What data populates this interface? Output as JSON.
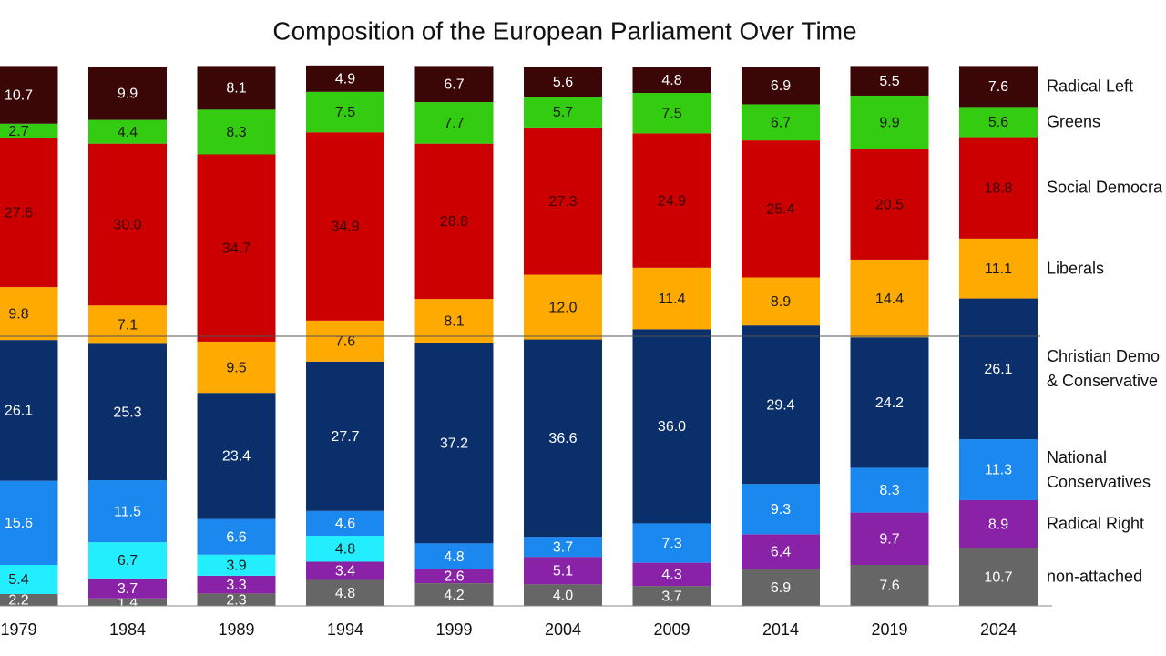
{
  "chart_data": {
    "type": "stacked_bar",
    "title": "Composition of the European Parliament Over Time",
    "categories": [
      "1979",
      "1984",
      "1989",
      "1994",
      "1999",
      "2004",
      "2009",
      "2014",
      "2019",
      "2024"
    ],
    "ylim": [
      0,
      100
    ],
    "hline": 50,
    "series": [
      {
        "name": "non-attached",
        "color": "#666666",
        "label_color": "#ffffff",
        "values": [
          2.2,
          1.4,
          2.3,
          4.8,
          4.2,
          4.0,
          3.7,
          6.9,
          7.6,
          10.7
        ],
        "value_labels": [
          "2.2",
          "1.4",
          "2.3",
          "4.8",
          "4.2",
          "4.0",
          "3.7",
          "6.9",
          "7.6",
          "10.7"
        ]
      },
      {
        "name": "Radical Right",
        "color": "#8a22a8",
        "label_color": "#ffffff",
        "values": [
          null,
          3.7,
          3.3,
          3.4,
          2.6,
          5.1,
          4.3,
          6.4,
          9.7,
          8.9
        ],
        "value_labels": [
          null,
          "3.7",
          "3.3",
          "3.4",
          "2.6",
          "5.1",
          "4.3",
          "6.4",
          "9.7",
          "8.9"
        ]
      },
      {
        "color": "#22eeff",
        "label_color": "#1a1a1a",
        "values": [
          5.4,
          6.7,
          3.9,
          4.8,
          null,
          null,
          null,
          null,
          null,
          null
        ],
        "value_labels": [
          "5.4",
          "6.7",
          "3.9",
          "4.8",
          null,
          null,
          null,
          null,
          null,
          null
        ]
      },
      {
        "name": "National\nConservatives",
        "color": "#1a88ee",
        "label_color": "#ffffff",
        "values": [
          15.6,
          11.5,
          6.6,
          4.6,
          4.8,
          3.7,
          7.3,
          9.3,
          8.3,
          11.3
        ],
        "value_labels": [
          "15.6",
          "11.5",
          "6.6",
          "4.6",
          "4.8",
          "3.7",
          "7.3",
          "9.3",
          "8.3",
          "11.3"
        ]
      },
      {
        "name": "Christian Demo\n& Conservative",
        "color": "#0b2f6b",
        "label_color": "#ffffff",
        "values": [
          26.1,
          25.3,
          23.4,
          27.7,
          37.2,
          36.6,
          36.0,
          29.4,
          24.2,
          26.1
        ],
        "value_labels": [
          "26.1",
          "25.3",
          "23.4",
          "27.7",
          "37.2",
          "36.6",
          "36.0",
          "29.4",
          "24.2",
          "26.1"
        ]
      },
      {
        "name": "Liberals",
        "color": "#ffaa00",
        "label_color": "#1a1a1a",
        "values": [
          9.8,
          7.1,
          9.5,
          7.6,
          8.1,
          12.0,
          11.4,
          8.9,
          14.4,
          11.1
        ],
        "value_labels": [
          "9.8",
          "7.1",
          "9.5",
          "7.6",
          "8.1",
          "12.0",
          "11.4",
          "8.9",
          "14.4",
          "11.1"
        ]
      },
      {
        "name": "Social Democra",
        "color": "#cc0000",
        "label_color": "#3a0000",
        "values": [
          27.6,
          30.0,
          34.7,
          34.9,
          28.8,
          27.3,
          24.9,
          25.4,
          20.5,
          18.8
        ],
        "value_labels": [
          "27.6",
          "30.0",
          "34.7",
          "34.9",
          "28.8",
          "27.3",
          "24.9",
          "25.4",
          "20.5",
          "18.8"
        ]
      },
      {
        "name": "Greens",
        "color": "#33cc11",
        "label_color": "#1a1a1a",
        "values": [
          2.7,
          4.4,
          8.3,
          7.5,
          7.7,
          5.7,
          7.5,
          6.7,
          9.9,
          5.6
        ],
        "value_labels": [
          "2.7",
          "4.4",
          "8.3",
          "7.5",
          "7.7",
          "5.7",
          "7.5",
          "6.7",
          "9.9",
          "5.6"
        ]
      },
      {
        "name": "Radical Left",
        "color": "#3a0606",
        "label_color": "#ffffff",
        "values": [
          10.7,
          9.9,
          8.1,
          4.9,
          6.7,
          5.6,
          4.8,
          6.9,
          5.5,
          7.6
        ],
        "value_labels": [
          "10.7",
          "9.9",
          "8.1",
          "4.9",
          "6.7",
          "5.6",
          "4.8",
          "6.9",
          "5.5",
          "7.6"
        ]
      }
    ]
  }
}
